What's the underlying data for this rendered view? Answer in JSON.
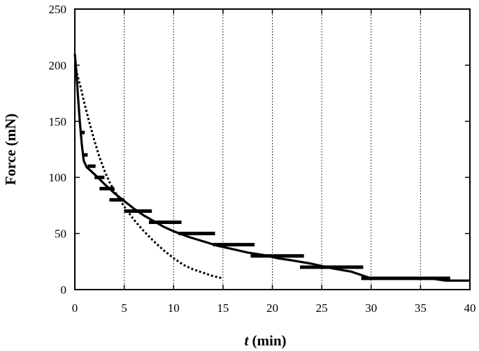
{
  "chart_data": {
    "type": "line",
    "xlabel_symbol": "t",
    "xlabel_unit": "(min)",
    "ylabel": "Force (mN)",
    "xlim": [
      0,
      40
    ],
    "ylim": [
      0,
      250
    ],
    "x_ticks": [
      0,
      5,
      10,
      15,
      20,
      25,
      30,
      35,
      40
    ],
    "y_ticks": [
      0,
      50,
      100,
      150,
      200,
      250
    ],
    "vertical_grid": [
      5,
      10,
      15,
      20,
      25,
      30,
      35
    ],
    "grid": "vertical dotted",
    "series": [
      {
        "style": "solid",
        "x": [
          0,
          0.15,
          0.3,
          0.5,
          0.7,
          0.9,
          1.2,
          1.6,
          2.2,
          3.0,
          4.0,
          5.0,
          6.0,
          7.0,
          8.0,
          9.0,
          10.0,
          11.5,
          13.0,
          14.5,
          16.0,
          17.5,
          19.0,
          20.5,
          22.0,
          24.0,
          26.0,
          28.0,
          29.0,
          30.0,
          32.0,
          34.0,
          36.0,
          37.5,
          40.0
        ],
        "y": [
          210,
          195,
          175,
          150,
          130,
          115,
          109,
          106,
          101,
          94,
          86,
          79,
          72,
          66,
          61,
          56,
          52,
          47,
          43,
          39,
          36,
          33,
          31,
          28,
          26,
          23,
          19,
          16,
          13,
          10,
          10,
          10,
          10,
          8,
          8
        ]
      },
      {
        "style": "dotted",
        "x": [
          0,
          0.3,
          0.6,
          1.0,
          1.5,
          2.0,
          2.5,
          3.0,
          3.5,
          4.0,
          5.0,
          6.0,
          7.0,
          8.0,
          9.0,
          10.0,
          11.0,
          12.0,
          13.0,
          14.0,
          15.0
        ],
        "y": [
          200,
          190,
          180,
          165,
          148,
          132,
          118,
          106,
          96,
          88,
          74,
          62,
          52,
          43,
          35,
          28,
          22,
          18,
          15,
          12,
          10
        ]
      },
      {
        "style": "steps",
        "segments": [
          {
            "x": [
              0.6,
              1.0
            ],
            "y": 140
          },
          {
            "x": [
              0.8,
              1.3
            ],
            "y": 120
          },
          {
            "x": [
              1.3,
              2.1
            ],
            "y": 110
          },
          {
            "x": [
              2.0,
              3.0
            ],
            "y": 100
          },
          {
            "x": [
              2.5,
              4.0
            ],
            "y": 90
          },
          {
            "x": [
              3.5,
              5.0
            ],
            "y": 80
          },
          {
            "x": [
              5.0,
              7.8
            ],
            "y": 70
          },
          {
            "x": [
              7.5,
              10.8
            ],
            "y": 60
          },
          {
            "x": [
              10.5,
              14.2
            ],
            "y": 50
          },
          {
            "x": [
              14.0,
              18.2
            ],
            "y": 40
          },
          {
            "x": [
              17.8,
              23.2
            ],
            "y": 30
          },
          {
            "x": [
              22.8,
              29.2
            ],
            "y": 20
          },
          {
            "x": [
              29.0,
              38.0
            ],
            "y": 10
          }
        ]
      }
    ]
  }
}
